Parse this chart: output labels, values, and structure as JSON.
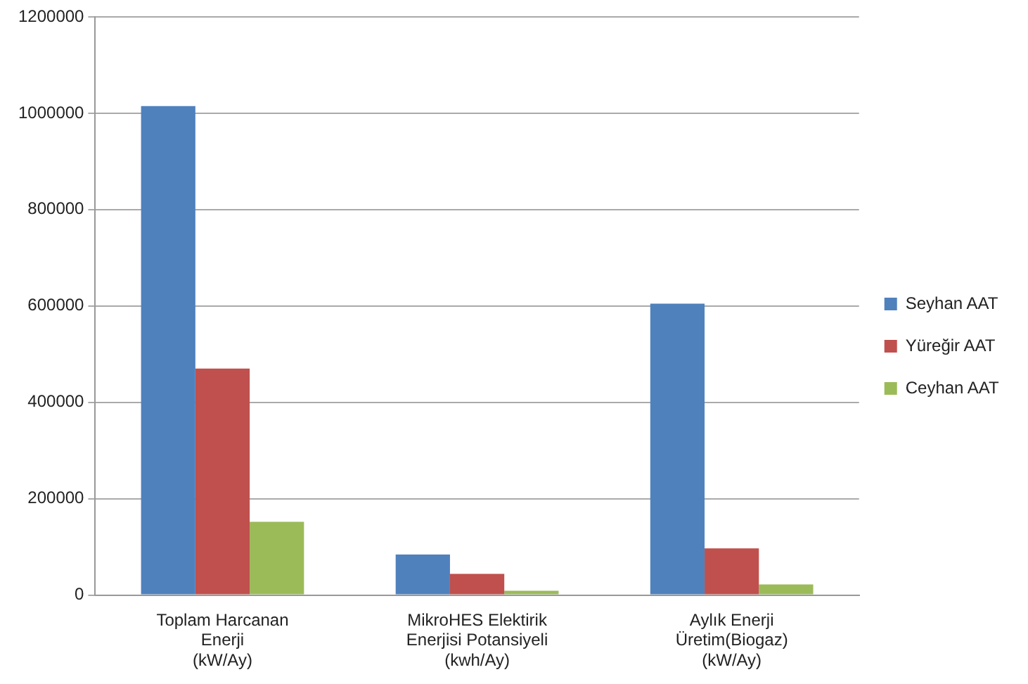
{
  "chart_data": {
    "type": "bar",
    "categories": [
      [
        "Toplam Harcanan",
        "Enerji",
        "(kW/Ay)"
      ],
      [
        "MikroHES Elektirik",
        "Enerjisi Potansiyeli",
        "(kwh/Ay)"
      ],
      [
        "Aylık Enerji",
        "Üretim(Biogaz)",
        "(kW/Ay)"
      ]
    ],
    "series": [
      {
        "name": "Seyhan AAT",
        "color": "#4f81bd",
        "values": [
          1015000,
          84000,
          605000
        ]
      },
      {
        "name": "Yüreğir AAT",
        "color": "#c0504d",
        "values": [
          470000,
          44000,
          97000
        ]
      },
      {
        "name": "Ceyhan AAT",
        "color": "#9bbb59",
        "values": [
          152000,
          9000,
          22000
        ]
      }
    ],
    "ylim": [
      0,
      1200000
    ],
    "yticks": [
      0,
      200000,
      400000,
      600000,
      800000,
      1000000,
      1200000
    ],
    "grid": "y",
    "legend": "right"
  }
}
